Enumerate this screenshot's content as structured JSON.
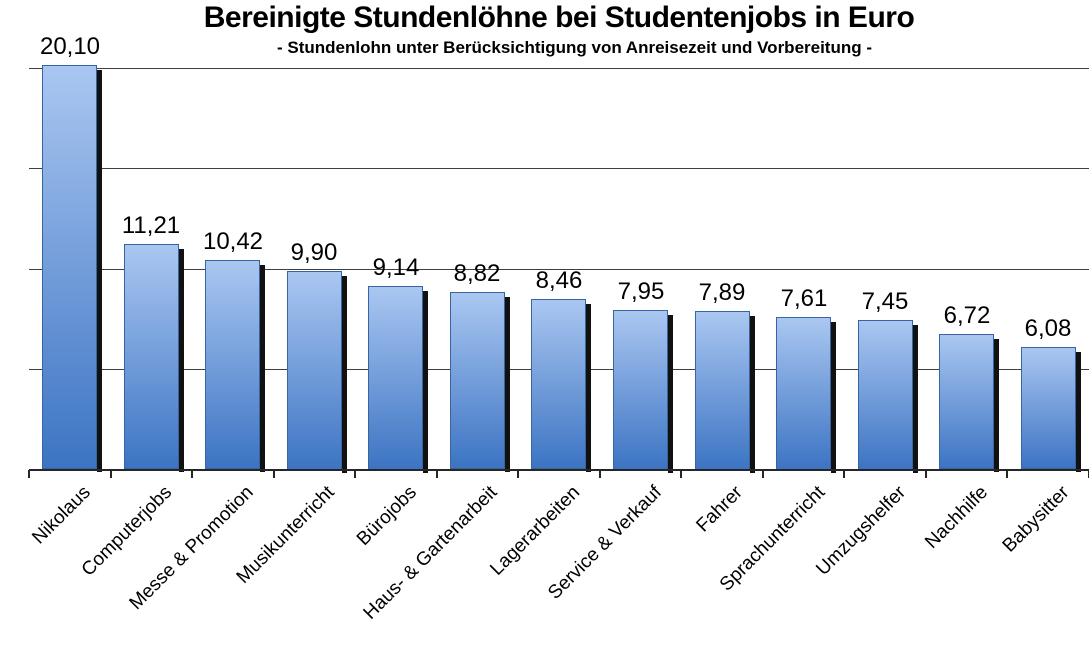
{
  "chart_data": {
    "type": "bar",
    "title": "Bereinigte Stundenlöhne bei Studentenjobs in Euro",
    "subtitle": "- Stundenlohn unter Berücksichtigung von Anreisezeit und Vorbereitung -",
    "categories": [
      "Nikolaus",
      "Computerjobs",
      "Messe & Promotion",
      "Musikunterricht",
      "Bürojobs",
      "Haus- & Gartenarbeit",
      "Lagerarbeiten",
      "Service & Verkauf",
      "Fahrer",
      "Sprachunterricht",
      "Umzugshelfer",
      "Nachhilfe",
      "Babysitter"
    ],
    "values": [
      20.1,
      11.21,
      10.42,
      9.9,
      9.14,
      8.82,
      8.46,
      7.95,
      7.89,
      7.61,
      7.45,
      6.72,
      6.08
    ],
    "value_labels": [
      "20,10",
      "11,21",
      "10,42",
      "9,90",
      "9,14",
      "8,82",
      "8,46",
      "7,95",
      "7,89",
      "7,61",
      "7,45",
      "6,72",
      "6,08"
    ],
    "xlabel": "",
    "ylabel": "",
    "ylim": [
      0,
      20
    ],
    "gridline_interval": 5,
    "grid": true,
    "legend": false,
    "y_tick_labels_visible": false,
    "category_label_rotation_deg": 45,
    "decimal_separator": "comma",
    "colors": {
      "bar_top": "#aac7f1",
      "bar_bottom": "#3c74c3",
      "bar_border": "#38659f",
      "bar_shadow": "#111111",
      "gridline": "#3f3f3f",
      "axis": "#262626",
      "text": "#000000",
      "background": "#ffffff"
    }
  }
}
